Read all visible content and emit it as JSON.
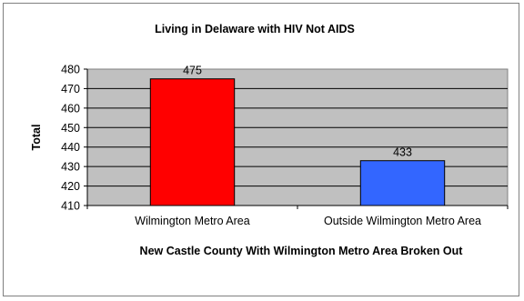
{
  "chart_data": {
    "type": "bar",
    "title": "Living in Delaware with HIV Not AIDS",
    "xlabel": "New Castle County With Wilmington Metro Area Broken Out",
    "ylabel": "Total",
    "categories": [
      "Wilmington Metro Area",
      "Outside Wilmington Metro Area"
    ],
    "values": [
      475,
      433
    ],
    "data_labels": [
      "475",
      "433"
    ],
    "bar_colors": [
      "#ff0000",
      "#3366ff"
    ],
    "plot_background": "#c0c0c0",
    "ylim": [
      410,
      480
    ],
    "yticks": [
      "410",
      "420",
      "430",
      "440",
      "450",
      "460",
      "470",
      "480"
    ],
    "grid": true,
    "legend": "none"
  }
}
